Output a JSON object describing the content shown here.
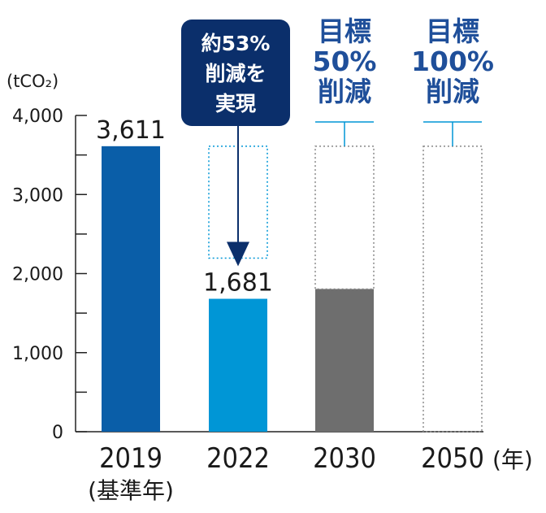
{
  "chart_data": {
    "type": "bar",
    "unit_label": "(tCO₂)",
    "y_ticks": [
      "0",
      "1,000",
      "2,000",
      "3,000",
      "4,000"
    ],
    "ylim": [
      0,
      4000
    ],
    "categories": [
      "2019",
      "2022",
      "2030",
      "2050"
    ],
    "category_sublabel": "(基準年)",
    "x_suffix": "(年)",
    "values": [
      3611,
      1681,
      1805,
      0
    ],
    "value_labels": [
      "3,611",
      "1,681",
      "",
      ""
    ],
    "colors": {
      "2019": "#0a5ea8",
      "2022": "#0096d6",
      "2030": "#6e6e6e",
      "callout": "#0b2f6b",
      "target_text": "#1f4f9a",
      "dotted_2022": "#0096d6",
      "dotted_target": "#888888",
      "connector": "#0096d6"
    },
    "callout_lines": [
      "約53%",
      "削減を",
      "実現"
    ],
    "targets": [
      {
        "category": "2030",
        "lines": [
          "目標",
          "50%",
          "削減"
        ]
      },
      {
        "category": "2050",
        "lines": [
          "目標",
          "100%",
          "削減"
        ]
      }
    ]
  }
}
